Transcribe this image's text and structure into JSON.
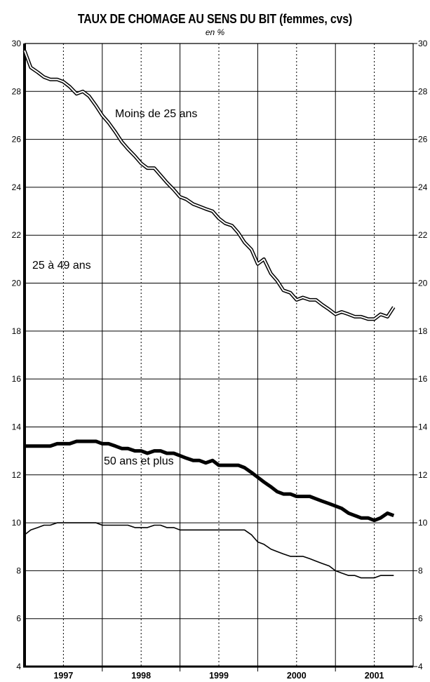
{
  "chart_data": {
    "type": "line",
    "title": "TAUX DE CHOMAGE AU SENS DU BIT (femmes, cvs)",
    "subtitle": "en %",
    "ylim": [
      4,
      30
    ],
    "yticks": [
      4,
      6,
      8,
      10,
      12,
      14,
      16,
      18,
      20,
      22,
      24,
      26,
      28,
      30
    ],
    "xlim": [
      1996.5,
      2001.5
    ],
    "year_labels": [
      "1997",
      "1998",
      "1999",
      "2000",
      "2001"
    ],
    "grid": true,
    "series": [
      {
        "name": "Moins de 25 ans",
        "style": "double",
        "points": [
          [
            1996.5,
            29.7
          ],
          [
            1996.58,
            29.0
          ],
          [
            1996.67,
            28.8
          ],
          [
            1996.75,
            28.6
          ],
          [
            1996.83,
            28.5
          ],
          [
            1996.92,
            28.5
          ],
          [
            1997.0,
            28.4
          ],
          [
            1997.08,
            28.2
          ],
          [
            1997.17,
            27.9
          ],
          [
            1997.25,
            28.0
          ],
          [
            1997.33,
            27.8
          ],
          [
            1997.42,
            27.4
          ],
          [
            1997.5,
            27.0
          ],
          [
            1997.58,
            26.7
          ],
          [
            1997.67,
            26.3
          ],
          [
            1997.75,
            25.9
          ],
          [
            1997.83,
            25.6
          ],
          [
            1997.92,
            25.3
          ],
          [
            1998.0,
            25.0
          ],
          [
            1998.08,
            24.8
          ],
          [
            1998.17,
            24.8
          ],
          [
            1998.25,
            24.5
          ],
          [
            1998.33,
            24.2
          ],
          [
            1998.42,
            23.9
          ],
          [
            1998.5,
            23.6
          ],
          [
            1998.58,
            23.5
          ],
          [
            1998.67,
            23.3
          ],
          [
            1998.75,
            23.2
          ],
          [
            1998.83,
            23.1
          ],
          [
            1998.92,
            23.0
          ],
          [
            1999.0,
            22.7
          ],
          [
            1999.08,
            22.5
          ],
          [
            1999.17,
            22.4
          ],
          [
            1999.25,
            22.1
          ],
          [
            1999.33,
            21.7
          ],
          [
            1999.42,
            21.4
          ],
          [
            1999.5,
            20.8
          ],
          [
            1999.58,
            21.0
          ],
          [
            1999.67,
            20.4
          ],
          [
            1999.75,
            20.1
          ],
          [
            1999.83,
            19.7
          ],
          [
            1999.92,
            19.6
          ],
          [
            2000.0,
            19.3
          ],
          [
            2000.08,
            19.4
          ],
          [
            2000.17,
            19.3
          ],
          [
            2000.25,
            19.3
          ],
          [
            2000.33,
            19.1
          ],
          [
            2000.42,
            18.9
          ],
          [
            2000.5,
            18.7
          ],
          [
            2000.58,
            18.8
          ],
          [
            2000.67,
            18.7
          ],
          [
            2000.75,
            18.6
          ],
          [
            2000.83,
            18.6
          ],
          [
            2000.92,
            18.5
          ],
          [
            2001.0,
            18.5
          ],
          [
            2001.08,
            18.7
          ],
          [
            2001.17,
            18.6
          ],
          [
            2001.25,
            19.0
          ]
        ]
      },
      {
        "name": "25 à 49 ans",
        "style": "thick",
        "points": [
          [
            1996.5,
            13.2
          ],
          [
            1996.58,
            13.2
          ],
          [
            1996.67,
            13.2
          ],
          [
            1996.75,
            13.2
          ],
          [
            1996.83,
            13.2
          ],
          [
            1996.92,
            13.3
          ],
          [
            1997.0,
            13.3
          ],
          [
            1997.08,
            13.3
          ],
          [
            1997.17,
            13.4
          ],
          [
            1997.25,
            13.4
          ],
          [
            1997.33,
            13.4
          ],
          [
            1997.42,
            13.4
          ],
          [
            1997.5,
            13.3
          ],
          [
            1997.58,
            13.3
          ],
          [
            1997.67,
            13.2
          ],
          [
            1997.75,
            13.1
          ],
          [
            1997.83,
            13.1
          ],
          [
            1997.92,
            13.0
          ],
          [
            1998.0,
            13.0
          ],
          [
            1998.08,
            12.9
          ],
          [
            1998.17,
            13.0
          ],
          [
            1998.25,
            13.0
          ],
          [
            1998.33,
            12.9
          ],
          [
            1998.42,
            12.9
          ],
          [
            1998.5,
            12.8
          ],
          [
            1998.58,
            12.7
          ],
          [
            1998.67,
            12.6
          ],
          [
            1998.75,
            12.6
          ],
          [
            1998.83,
            12.5
          ],
          [
            1998.92,
            12.6
          ],
          [
            1999.0,
            12.4
          ],
          [
            1999.08,
            12.4
          ],
          [
            1999.17,
            12.4
          ],
          [
            1999.25,
            12.4
          ],
          [
            1999.33,
            12.3
          ],
          [
            1999.42,
            12.1
          ],
          [
            1999.5,
            11.9
          ],
          [
            1999.58,
            11.7
          ],
          [
            1999.67,
            11.5
          ],
          [
            1999.75,
            11.3
          ],
          [
            1999.83,
            11.2
          ],
          [
            1999.92,
            11.2
          ],
          [
            2000.0,
            11.1
          ],
          [
            2000.08,
            11.1
          ],
          [
            2000.17,
            11.1
          ],
          [
            2000.25,
            11.0
          ],
          [
            2000.33,
            10.9
          ],
          [
            2000.42,
            10.8
          ],
          [
            2000.5,
            10.7
          ],
          [
            2000.58,
            10.6
          ],
          [
            2000.67,
            10.4
          ],
          [
            2000.75,
            10.3
          ],
          [
            2000.83,
            10.2
          ],
          [
            2000.92,
            10.2
          ],
          [
            2001.0,
            10.1
          ],
          [
            2001.08,
            10.2
          ],
          [
            2001.17,
            10.4
          ],
          [
            2001.25,
            10.3
          ]
        ]
      },
      {
        "name": "50 ans et plus",
        "style": "thin",
        "points": [
          [
            1996.5,
            9.5
          ],
          [
            1996.58,
            9.7
          ],
          [
            1996.67,
            9.8
          ],
          [
            1996.75,
            9.9
          ],
          [
            1996.83,
            9.9
          ],
          [
            1996.92,
            10.0
          ],
          [
            1997.0,
            10.0
          ],
          [
            1997.08,
            10.0
          ],
          [
            1997.17,
            10.0
          ],
          [
            1997.25,
            10.0
          ],
          [
            1997.33,
            10.0
          ],
          [
            1997.42,
            10.0
          ],
          [
            1997.5,
            9.9
          ],
          [
            1997.58,
            9.9
          ],
          [
            1997.67,
            9.9
          ],
          [
            1997.75,
            9.9
          ],
          [
            1997.83,
            9.9
          ],
          [
            1997.92,
            9.8
          ],
          [
            1998.0,
            9.8
          ],
          [
            1998.08,
            9.8
          ],
          [
            1998.17,
            9.9
          ],
          [
            1998.25,
            9.9
          ],
          [
            1998.33,
            9.8
          ],
          [
            1998.42,
            9.8
          ],
          [
            1998.5,
            9.7
          ],
          [
            1998.58,
            9.7
          ],
          [
            1998.67,
            9.7
          ],
          [
            1998.75,
            9.7
          ],
          [
            1998.83,
            9.7
          ],
          [
            1998.92,
            9.7
          ],
          [
            1999.0,
            9.7
          ],
          [
            1999.08,
            9.7
          ],
          [
            1999.17,
            9.7
          ],
          [
            1999.25,
            9.7
          ],
          [
            1999.33,
            9.7
          ],
          [
            1999.42,
            9.5
          ],
          [
            1999.5,
            9.2
          ],
          [
            1999.58,
            9.1
          ],
          [
            1999.67,
            8.9
          ],
          [
            1999.75,
            8.8
          ],
          [
            1999.83,
            8.7
          ],
          [
            1999.92,
            8.6
          ],
          [
            2000.0,
            8.6
          ],
          [
            2000.08,
            8.6
          ],
          [
            2000.17,
            8.5
          ],
          [
            2000.25,
            8.4
          ],
          [
            2000.33,
            8.3
          ],
          [
            2000.42,
            8.2
          ],
          [
            2000.5,
            8.0
          ],
          [
            2000.58,
            7.9
          ],
          [
            2000.67,
            7.8
          ],
          [
            2000.75,
            7.8
          ],
          [
            2000.83,
            7.7
          ],
          [
            2000.92,
            7.7
          ],
          [
            2001.0,
            7.7
          ],
          [
            2001.08,
            7.8
          ],
          [
            2001.17,
            7.8
          ],
          [
            2001.25,
            7.8
          ]
        ]
      }
    ]
  }
}
